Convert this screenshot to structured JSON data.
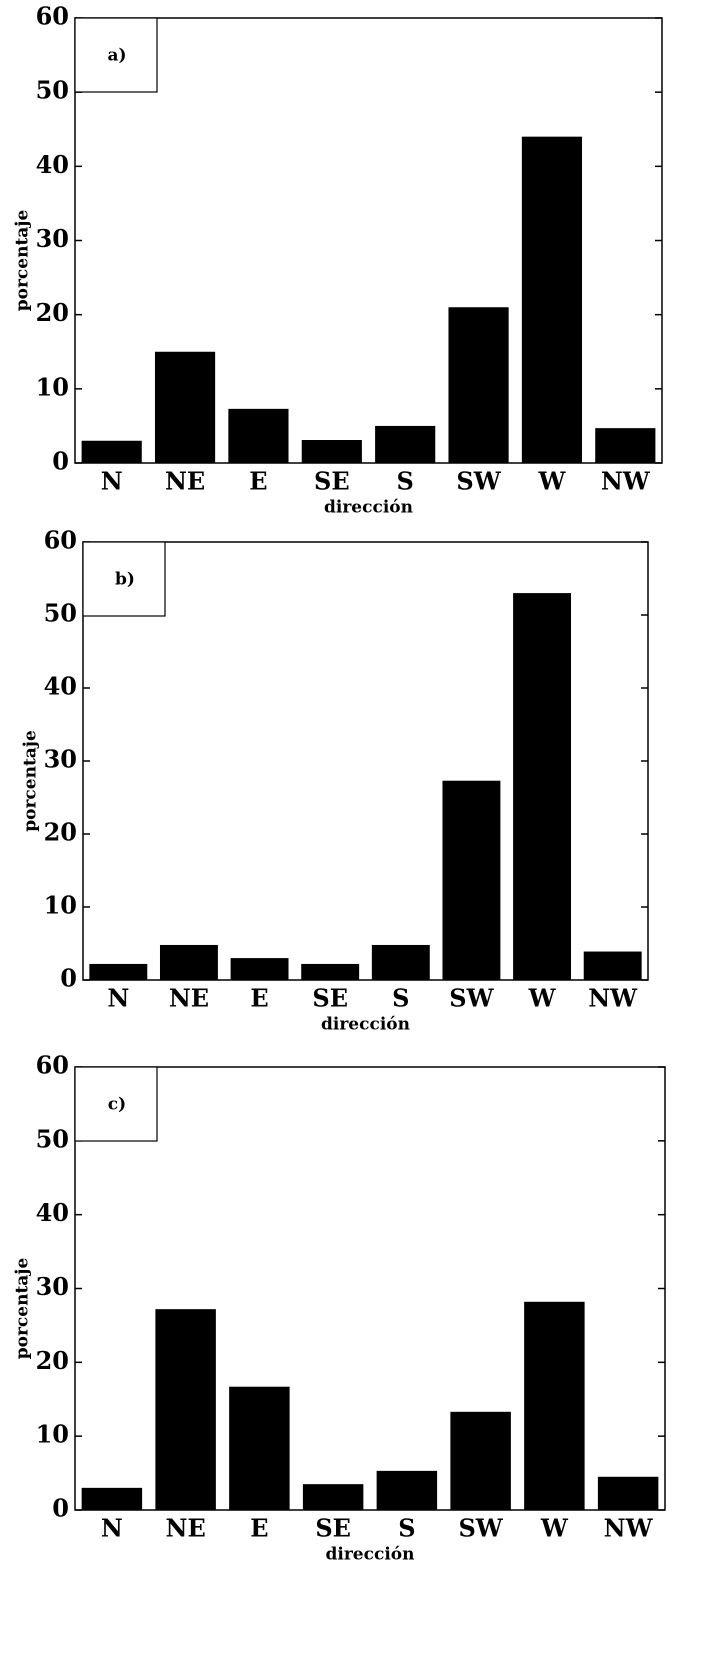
{
  "chart_data": [
    {
      "type": "bar",
      "panel_label": "a)",
      "categories": [
        "N",
        "NE",
        "E",
        "SE",
        "S",
        "SW",
        "W",
        "NW"
      ],
      "values": [
        3.0,
        15.0,
        7.3,
        3.1,
        5.0,
        21.0,
        44.0,
        4.7
      ],
      "color": "#000000",
      "ylim": [
        0,
        60
      ],
      "yticks": [
        0,
        10,
        20,
        30,
        40,
        50,
        60
      ],
      "xlabel": "dirección",
      "ylabel": "porcentaje"
    },
    {
      "type": "bar",
      "panel_label": "b)",
      "categories": [
        "N",
        "NE",
        "E",
        "SE",
        "S",
        "SW",
        "W",
        "NW"
      ],
      "values": [
        2.2,
        4.8,
        3.0,
        2.2,
        4.8,
        27.3,
        53.0,
        3.9
      ],
      "color": "#000000",
      "ylim": [
        0,
        60
      ],
      "yticks": [
        0,
        10,
        20,
        30,
        40,
        50,
        60
      ],
      "xlabel": "dirección",
      "ylabel": "porcentaje"
    },
    {
      "type": "bar",
      "panel_label": "c)",
      "categories": [
        "N",
        "NE",
        "E",
        "SE",
        "S",
        "SW",
        "W",
        "NW"
      ],
      "values": [
        3.0,
        27.2,
        16.7,
        3.5,
        5.3,
        13.3,
        28.2,
        4.5
      ],
      "color": "#000000",
      "ylim": [
        0,
        60
      ],
      "yticks": [
        0,
        10,
        20,
        30,
        40,
        50,
        60
      ],
      "xlabel": "dirección",
      "ylabel": "porcentaje"
    }
  ]
}
